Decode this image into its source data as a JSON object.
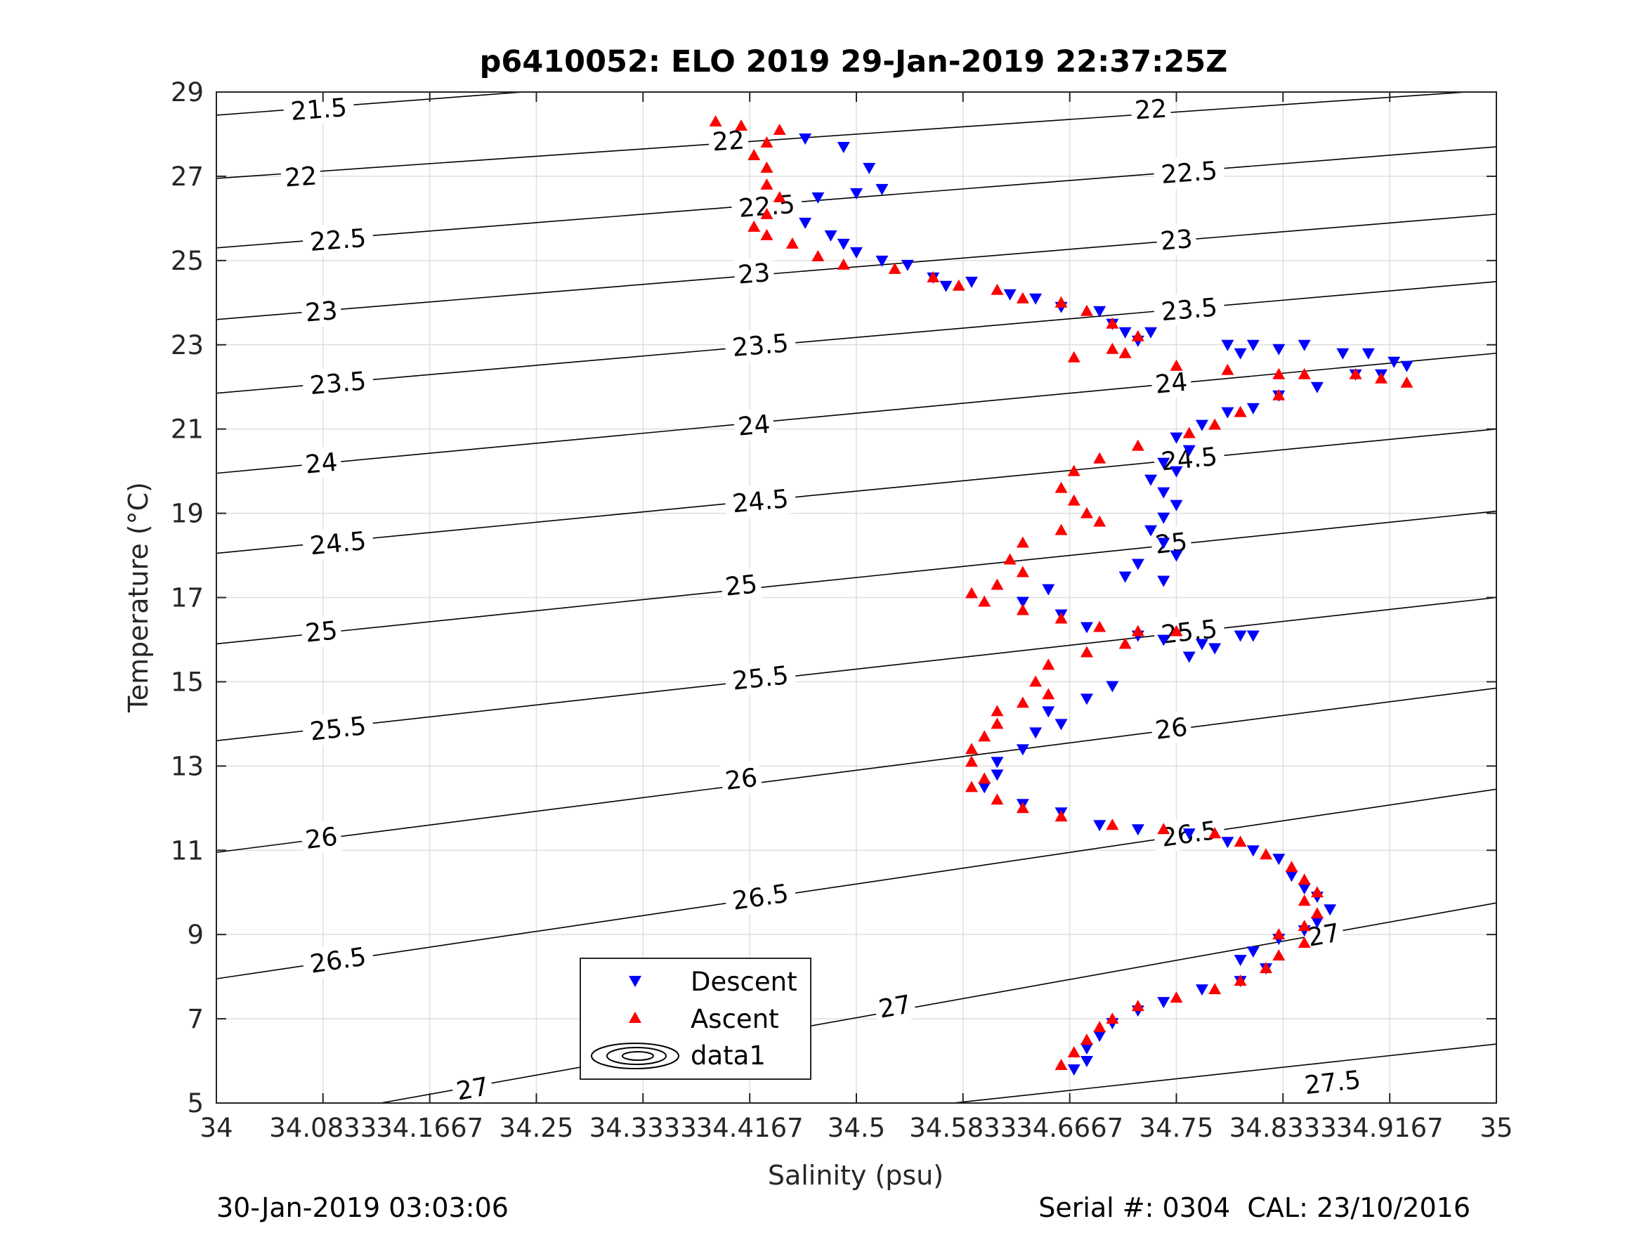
{
  "chart_data": {
    "type": "scatter",
    "title": "p6410052: ELO 2019 29-Jan-2019 22:37:25Z",
    "xlabel": "Salinity (psu)",
    "ylabel": "Temperature (°C)",
    "xlim": [
      34,
      35
    ],
    "ylim": [
      5,
      29
    ],
    "xticks": [
      34,
      34.0833,
      34.1667,
      34.25,
      34.3333,
      34.4167,
      34.5,
      34.5833,
      34.6667,
      34.75,
      34.8333,
      34.9167,
      35
    ],
    "xtick_labels": [
      "34",
      "34.0833",
      "34.1667",
      "34.25",
      "34.3333",
      "34.4167",
      "34.5",
      "34.5833",
      "34.6667",
      "34.75",
      "34.8333",
      "34.9167",
      "35"
    ],
    "yticks": [
      5,
      7,
      9,
      11,
      13,
      15,
      17,
      19,
      21,
      23,
      25,
      27,
      29
    ],
    "ytick_labels": [
      "5",
      "7",
      "9",
      "11",
      "13",
      "15",
      "17",
      "19",
      "21",
      "23",
      "25",
      "27",
      "29"
    ],
    "grid": true,
    "legend_position": "bottom-center",
    "legend": [
      "Descent",
      "Ascent",
      "data1"
    ],
    "series": [
      {
        "name": "Descent",
        "marker": "triangle-down",
        "color": "#0000ff",
        "points": [
          [
            34.46,
            27.9
          ],
          [
            34.49,
            27.7
          ],
          [
            34.51,
            27.2
          ],
          [
            34.52,
            26.7
          ],
          [
            34.5,
            26.6
          ],
          [
            34.47,
            26.5
          ],
          [
            34.46,
            25.9
          ],
          [
            34.48,
            25.6
          ],
          [
            34.49,
            25.4
          ],
          [
            34.5,
            25.2
          ],
          [
            34.52,
            25.0
          ],
          [
            34.54,
            24.9
          ],
          [
            34.56,
            24.6
          ],
          [
            34.57,
            24.4
          ],
          [
            34.59,
            24.5
          ],
          [
            34.62,
            24.2
          ],
          [
            34.64,
            24.1
          ],
          [
            34.66,
            23.9
          ],
          [
            34.69,
            23.8
          ],
          [
            34.7,
            23.5
          ],
          [
            34.71,
            23.3
          ],
          [
            34.72,
            23.1
          ],
          [
            34.73,
            23.3
          ],
          [
            34.79,
            23.0
          ],
          [
            34.8,
            22.8
          ],
          [
            34.81,
            23.0
          ],
          [
            34.83,
            22.9
          ],
          [
            34.85,
            23.0
          ],
          [
            34.88,
            22.8
          ],
          [
            34.9,
            22.8
          ],
          [
            34.92,
            22.6
          ],
          [
            34.93,
            22.5
          ],
          [
            34.91,
            22.3
          ],
          [
            34.89,
            22.3
          ],
          [
            34.86,
            22.0
          ],
          [
            34.83,
            21.8
          ],
          [
            34.81,
            21.5
          ],
          [
            34.79,
            21.4
          ],
          [
            34.77,
            21.1
          ],
          [
            34.75,
            20.8
          ],
          [
            34.76,
            20.5
          ],
          [
            34.74,
            20.2
          ],
          [
            34.75,
            20.0
          ],
          [
            34.73,
            19.8
          ],
          [
            34.74,
            19.5
          ],
          [
            34.75,
            19.2
          ],
          [
            34.74,
            18.9
          ],
          [
            34.73,
            18.6
          ],
          [
            34.74,
            18.3
          ],
          [
            34.75,
            18.0
          ],
          [
            34.72,
            17.8
          ],
          [
            34.71,
            17.5
          ],
          [
            34.74,
            17.4
          ],
          [
            34.65,
            17.2
          ],
          [
            34.63,
            16.9
          ],
          [
            34.66,
            16.6
          ],
          [
            34.68,
            16.3
          ],
          [
            34.72,
            16.1
          ],
          [
            34.74,
            16.0
          ],
          [
            34.77,
            15.9
          ],
          [
            34.8,
            16.1
          ],
          [
            34.81,
            16.1
          ],
          [
            34.78,
            15.8
          ],
          [
            34.76,
            15.6
          ],
          [
            34.7,
            14.9
          ],
          [
            34.68,
            14.6
          ],
          [
            34.65,
            14.3
          ],
          [
            34.66,
            14.0
          ],
          [
            34.64,
            13.8
          ],
          [
            34.63,
            13.4
          ],
          [
            34.61,
            13.1
          ],
          [
            34.61,
            12.8
          ],
          [
            34.6,
            12.5
          ],
          [
            34.63,
            12.1
          ],
          [
            34.66,
            11.9
          ],
          [
            34.69,
            11.6
          ],
          [
            34.72,
            11.5
          ],
          [
            34.76,
            11.4
          ],
          [
            34.79,
            11.2
          ],
          [
            34.81,
            11.0
          ],
          [
            34.83,
            10.8
          ],
          [
            34.84,
            10.4
          ],
          [
            34.85,
            10.1
          ],
          [
            34.86,
            9.9
          ],
          [
            34.87,
            9.6
          ],
          [
            34.86,
            9.3
          ],
          [
            34.85,
            9.1
          ],
          [
            34.83,
            8.9
          ],
          [
            34.81,
            8.6
          ],
          [
            34.8,
            8.4
          ],
          [
            34.82,
            8.2
          ],
          [
            34.8,
            7.9
          ],
          [
            34.77,
            7.7
          ],
          [
            34.74,
            7.4
          ],
          [
            34.72,
            7.2
          ],
          [
            34.7,
            6.9
          ],
          [
            34.69,
            6.6
          ],
          [
            34.68,
            6.3
          ],
          [
            34.68,
            6.0
          ],
          [
            34.67,
            5.8
          ]
        ]
      },
      {
        "name": "Ascent",
        "marker": "triangle-up",
        "color": "#ff0000",
        "points": [
          [
            34.39,
            28.3
          ],
          [
            34.41,
            28.2
          ],
          [
            34.44,
            28.1
          ],
          [
            34.43,
            27.8
          ],
          [
            34.42,
            27.5
          ],
          [
            34.43,
            27.2
          ],
          [
            34.43,
            26.8
          ],
          [
            34.44,
            26.5
          ],
          [
            34.43,
            26.1
          ],
          [
            34.42,
            25.8
          ],
          [
            34.43,
            25.6
          ],
          [
            34.45,
            25.4
          ],
          [
            34.47,
            25.1
          ],
          [
            34.49,
            24.9
          ],
          [
            34.53,
            24.8
          ],
          [
            34.56,
            24.6
          ],
          [
            34.58,
            24.4
          ],
          [
            34.61,
            24.3
          ],
          [
            34.63,
            24.1
          ],
          [
            34.66,
            24.0
          ],
          [
            34.68,
            23.8
          ],
          [
            34.7,
            23.5
          ],
          [
            34.72,
            23.2
          ],
          [
            34.7,
            22.9
          ],
          [
            34.67,
            22.7
          ],
          [
            34.71,
            22.8
          ],
          [
            34.75,
            22.5
          ],
          [
            34.79,
            22.4
          ],
          [
            34.83,
            22.3
          ],
          [
            34.85,
            22.3
          ],
          [
            34.89,
            22.3
          ],
          [
            34.91,
            22.2
          ],
          [
            34.93,
            22.1
          ],
          [
            34.83,
            21.8
          ],
          [
            34.8,
            21.4
          ],
          [
            34.78,
            21.1
          ],
          [
            34.76,
            20.9
          ],
          [
            34.72,
            20.6
          ],
          [
            34.69,
            20.3
          ],
          [
            34.67,
            20.0
          ],
          [
            34.66,
            19.6
          ],
          [
            34.67,
            19.3
          ],
          [
            34.68,
            19.0
          ],
          [
            34.69,
            18.8
          ],
          [
            34.66,
            18.6
          ],
          [
            34.63,
            18.3
          ],
          [
            34.62,
            17.9
          ],
          [
            34.63,
            17.6
          ],
          [
            34.61,
            17.3
          ],
          [
            34.59,
            17.1
          ],
          [
            34.6,
            16.9
          ],
          [
            34.63,
            16.7
          ],
          [
            34.66,
            16.5
          ],
          [
            34.69,
            16.3
          ],
          [
            34.72,
            16.2
          ],
          [
            34.75,
            16.2
          ],
          [
            34.71,
            15.9
          ],
          [
            34.68,
            15.7
          ],
          [
            34.65,
            15.4
          ],
          [
            34.64,
            15.0
          ],
          [
            34.65,
            14.7
          ],
          [
            34.63,
            14.5
          ],
          [
            34.61,
            14.3
          ],
          [
            34.61,
            14.0
          ],
          [
            34.6,
            13.7
          ],
          [
            34.59,
            13.4
          ],
          [
            34.59,
            13.1
          ],
          [
            34.6,
            12.7
          ],
          [
            34.59,
            12.5
          ],
          [
            34.61,
            12.2
          ],
          [
            34.63,
            12.0
          ],
          [
            34.66,
            11.8
          ],
          [
            34.7,
            11.6
          ],
          [
            34.74,
            11.5
          ],
          [
            34.78,
            11.4
          ],
          [
            34.8,
            11.2
          ],
          [
            34.82,
            10.9
          ],
          [
            34.84,
            10.6
          ],
          [
            34.85,
            10.3
          ],
          [
            34.86,
            10.0
          ],
          [
            34.85,
            9.8
          ],
          [
            34.86,
            9.5
          ],
          [
            34.85,
            9.2
          ],
          [
            34.83,
            9.0
          ],
          [
            34.85,
            8.8
          ],
          [
            34.83,
            8.5
          ],
          [
            34.82,
            8.2
          ],
          [
            34.8,
            7.9
          ],
          [
            34.78,
            7.7
          ],
          [
            34.75,
            7.5
          ],
          [
            34.72,
            7.3
          ],
          [
            34.7,
            7.0
          ],
          [
            34.69,
            6.8
          ],
          [
            34.68,
            6.5
          ],
          [
            34.67,
            6.2
          ],
          [
            34.66,
            5.9
          ]
        ]
      }
    ],
    "density_contours": {
      "levels": [
        "21.5",
        "22",
        "22.5",
        "23",
        "23.5",
        "24",
        "24.5",
        "25",
        "25.5",
        "26",
        "26.5",
        "27",
        "27.5"
      ],
      "lines": [
        {
          "level": "21.5",
          "left_temp": 28.45,
          "right_temp": 30.75,
          "labels": [
            [
              34.08,
              28.6
            ]
          ]
        },
        {
          "level": "22",
          "left_temp": 26.95,
          "right_temp": 29.05,
          "labels": [
            [
              34.066,
              27.0
            ],
            [
              34.4,
              27.85
            ],
            [
              34.73,
              28.6
            ]
          ]
        },
        {
          "level": "22.5",
          "left_temp": 25.3,
          "right_temp": 27.7,
          "labels": [
            [
              34.095,
              25.5
            ],
            [
              34.43,
              26.3
            ],
            [
              34.76,
              27.1
            ]
          ]
        },
        {
          "level": "23",
          "left_temp": 23.6,
          "right_temp": 26.1,
          "labels": [
            [
              34.082,
              23.8
            ],
            [
              34.42,
              24.7
            ],
            [
              34.75,
              25.5
            ]
          ]
        },
        {
          "level": "23.5",
          "left_temp": 21.85,
          "right_temp": 24.5,
          "labels": [
            [
              34.095,
              22.1
            ],
            [
              34.425,
              23.0
            ],
            [
              34.76,
              23.85
            ]
          ]
        },
        {
          "level": "24",
          "left_temp": 19.95,
          "right_temp": 22.8,
          "labels": [
            [
              34.082,
              20.2
            ],
            [
              34.42,
              21.1
            ],
            [
              34.746,
              22.1
            ]
          ]
        },
        {
          "level": "24.5",
          "left_temp": 18.05,
          "right_temp": 21.0,
          "labels": [
            [
              34.095,
              18.3
            ],
            [
              34.425,
              19.3
            ],
            [
              34.76,
              20.3
            ]
          ]
        },
        {
          "level": "25",
          "left_temp": 15.9,
          "right_temp": 19.05,
          "labels": [
            [
              34.082,
              16.2
            ],
            [
              34.41,
              17.3
            ],
            [
              34.746,
              18.3
            ]
          ]
        },
        {
          "level": "25.5",
          "left_temp": 13.6,
          "right_temp": 17.0,
          "labels": [
            [
              34.095,
              13.9
            ],
            [
              34.425,
              15.1
            ],
            [
              34.76,
              16.2
            ]
          ]
        },
        {
          "level": "26",
          "left_temp": 10.95,
          "right_temp": 14.85,
          "labels": [
            [
              34.082,
              11.3
            ],
            [
              34.41,
              12.7
            ],
            [
              34.746,
              13.9
            ]
          ]
        },
        {
          "level": "26.5",
          "left_temp": 7.95,
          "right_temp": 12.45,
          "labels": [
            [
              34.095,
              8.4
            ],
            [
              34.425,
              9.9
            ],
            [
              34.76,
              11.4
            ]
          ]
        },
        {
          "level": "27",
          "left_temp": 4.3,
          "right_temp": 9.75,
          "labels": [
            [
              34.2,
              5.35
            ],
            [
              34.53,
              7.3
            ],
            [
              34.865,
              9.0
            ]
          ]
        },
        {
          "level": "27.5",
          "left_temp": 3.1,
          "right_temp": 6.4,
          "labels": [
            [
              34.872,
              5.5
            ]
          ]
        }
      ]
    }
  },
  "footer": {
    "left": "30-Jan-2019 03:03:06",
    "right": "Serial #: 0304  CAL: 23/10/2016"
  },
  "colors": {
    "descent": "#0000ff",
    "ascent": "#ff0000",
    "grid": "#dfdfdf",
    "axis": "#262626"
  }
}
